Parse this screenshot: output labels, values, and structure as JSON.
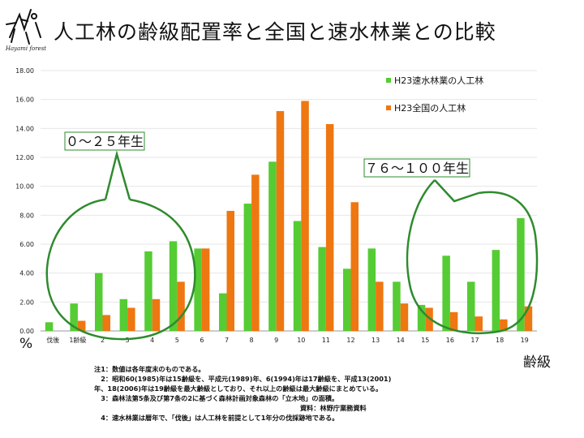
{
  "title": "人工林の齢級配置率と全国と速水林業との比較",
  "logo_text": "Hayami forest",
  "chart_data": {
    "type": "bar",
    "title": "人工林の齢級配置率と全国と速水林業との比較",
    "xlabel": "齢級",
    "ylabel": "%",
    "ylim": [
      0,
      18
    ],
    "yticks": [
      "0.00",
      "2.00",
      "4.00",
      "6.00",
      "8.00",
      "10.00",
      "12.00",
      "14.00",
      "16.00",
      "18.00"
    ],
    "categories": [
      "伐後",
      "1齢級",
      "2",
      "3",
      "4",
      "5",
      "6",
      "7",
      "8",
      "9",
      "10",
      "11",
      "12",
      "13",
      "14",
      "15",
      "16",
      "17",
      "18",
      "19"
    ],
    "series": [
      {
        "name": "H23速水林業の人工林",
        "color": "#55cc33",
        "values": [
          0.6,
          1.9,
          4.0,
          2.2,
          5.5,
          6.2,
          5.7,
          2.6,
          8.8,
          11.7,
          7.6,
          5.8,
          4.3,
          5.7,
          3.4,
          1.8,
          5.2,
          3.4,
          5.6,
          7.8
        ]
      },
      {
        "name": "H23全国の人工林",
        "color": "#ee7711",
        "values": [
          0.0,
          0.7,
          1.1,
          1.6,
          2.2,
          3.4,
          5.7,
          8.3,
          10.8,
          15.2,
          15.9,
          14.3,
          8.9,
          3.4,
          1.9,
          1.6,
          1.3,
          1.0,
          0.8,
          1.7
        ]
      }
    ],
    "annotations": [
      "０～２５年生",
      "７６～１００年生"
    ]
  },
  "notes": [
    "注1：数値は各年度末のものである。",
    "　2：昭和60(1985)年は15齢級を、平成元(1989)年、6(1994)年は17齢級を、平成13(2001)",
    "年、18(2006)年は19齢級を最大齢級としており、それ以上の齢級は最大齢級にまとめている。",
    "　3：森林法第5条及び第7条の2に基づく森林計画対象森林の「立木地」の面積。",
    "　　　　　　　　　　　　　　　　　　　　　　　　　　　　　　　資料：林野庁業務資料",
    "　4：速水林業は暦年で、「伐後」は人工林を前提として1年分の伐採跡地である。"
  ],
  "colors": {
    "green": "#55cc33",
    "orange": "#ee7711",
    "circle": "#2e8b2e",
    "grid": "#e6e6e6"
  }
}
